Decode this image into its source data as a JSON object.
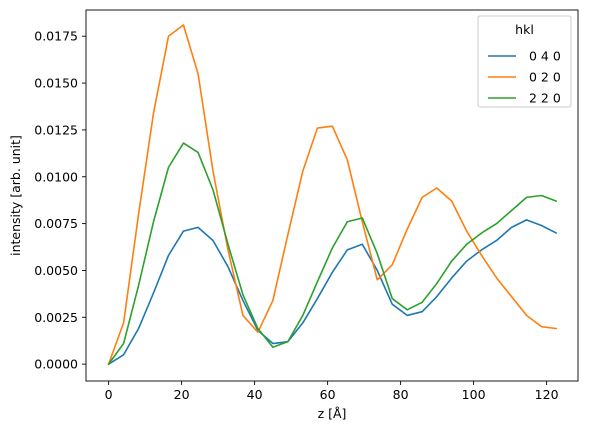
{
  "chart_data": {
    "type": "line",
    "xlabel": "z [Å]",
    "ylabel": "intensity [arb. unit]",
    "xlim": [
      -6.2,
      128.6
    ],
    "ylim": [
      -0.0009,
      0.0189
    ],
    "xticks": [
      0,
      20,
      40,
      60,
      80,
      100,
      120
    ],
    "yticks": [
      0.0,
      0.0025,
      0.005,
      0.0075,
      0.01,
      0.0125,
      0.015,
      0.0175
    ],
    "ytick_labels": [
      "0.0000",
      "0.0025",
      "0.0050",
      "0.0075",
      "0.0100",
      "0.0125",
      "0.0150",
      "0.0175"
    ],
    "xtick_labels": [
      "0",
      "20",
      "40",
      "60",
      "80",
      "100",
      "120"
    ],
    "grid": false,
    "legend": {
      "title": "hkl",
      "placement": "top-right"
    },
    "x": [
      0,
      4.1,
      8.2,
      12.3,
      16.4,
      20.5,
      24.5,
      28.6,
      32.7,
      36.8,
      40.9,
      45.0,
      49.1,
      53.2,
      57.2,
      61.3,
      65.4,
      69.5,
      73.6,
      77.7,
      81.8,
      85.9,
      89.9,
      94.0,
      98.1,
      102.2,
      106.3,
      110.4,
      114.5,
      118.6,
      122.6
    ],
    "series": [
      {
        "name": "0 4 0",
        "color": "#1f77b4",
        "values": [
          0.0,
          0.0005,
          0.0019,
          0.0038,
          0.0058,
          0.0071,
          0.0073,
          0.0066,
          0.0052,
          0.0034,
          0.0018,
          0.0011,
          0.0012,
          0.0022,
          0.0035,
          0.0049,
          0.0061,
          0.0064,
          0.005,
          0.0032,
          0.0026,
          0.0028,
          0.0036,
          0.0046,
          0.0055,
          0.0061,
          0.0066,
          0.0073,
          0.0077,
          0.0074,
          0.007
        ]
      },
      {
        "name": "0 2 0",
        "color": "#ff7f0e",
        "values": [
          0.0,
          0.0022,
          0.008,
          0.0134,
          0.0175,
          0.0181,
          0.0155,
          0.0103,
          0.0061,
          0.0026,
          0.0017,
          0.0034,
          0.0069,
          0.0103,
          0.0126,
          0.0127,
          0.0109,
          0.0076,
          0.0045,
          0.0053,
          0.0072,
          0.0089,
          0.0094,
          0.0087,
          0.0071,
          0.0058,
          0.0046,
          0.0036,
          0.0026,
          0.002,
          0.0019
        ]
      },
      {
        "name": "2 2 0",
        "color": "#2ca02c",
        "values": [
          0.0,
          0.0011,
          0.0042,
          0.0076,
          0.0105,
          0.0118,
          0.0113,
          0.0093,
          0.0064,
          0.0037,
          0.0019,
          0.0009,
          0.0012,
          0.0026,
          0.0044,
          0.0062,
          0.0076,
          0.0078,
          0.0059,
          0.0035,
          0.0029,
          0.0033,
          0.0043,
          0.0055,
          0.0064,
          0.007,
          0.0075,
          0.0082,
          0.0089,
          0.009,
          0.0087
        ]
      }
    ]
  }
}
